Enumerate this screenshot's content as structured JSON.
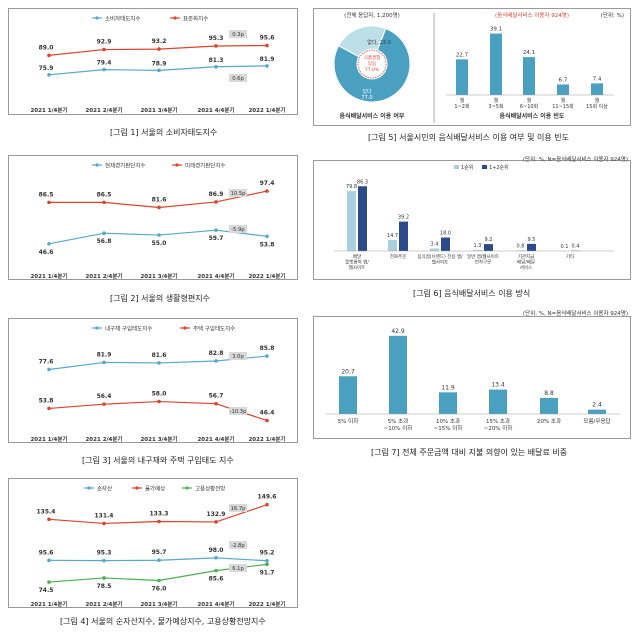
{
  "colors": {
    "blue": "#57a8c9",
    "red": "#d9452e",
    "green": "#4caf50",
    "bar": "#4aa0c0",
    "navy": "#2b4a8a",
    "lightbar": "#a9cfe0",
    "badge": "#d9d9d9"
  },
  "chart_data": [
    {
      "type": "line",
      "caption": "[그림 1] 서울의 소비자태도지수",
      "legend": [
        "소비자태도지수",
        "표준화지수"
      ],
      "categories": [
        "2021 1/4분기",
        "2021 2/4분기",
        "2021 3/4분기",
        "2021 4/4분기",
        "2022 1/4분기"
      ],
      "series": [
        {
          "name": "소비자태도지수",
          "values": [
            75.9,
            79.4,
            78.9,
            81.3,
            81.9
          ]
        },
        {
          "name": "표준화지수",
          "values": [
            89.0,
            92.9,
            93.2,
            95.3,
            95.6
          ]
        }
      ],
      "badges": [
        "0.3p",
        "0.6p"
      ],
      "ylim": [
        65,
        100
      ]
    },
    {
      "type": "line",
      "caption": "[그림 2] 서울의 생활형편지수",
      "legend": [
        "현재경기판단지수",
        "미래경기판단지수"
      ],
      "categories": [
        "2021 1/4분기",
        "2021 2/4분기",
        "2021 3/4분기",
        "2021 4/4분기",
        "2022 1/4분기"
      ],
      "series": [
        {
          "name": "현재경기판단지수",
          "values": [
            46.6,
            56.8,
            55.0,
            59.7,
            53.8
          ]
        },
        {
          "name": "미래경기판단지수",
          "values": [
            86.5,
            86.5,
            81.6,
            86.9,
            97.4
          ]
        }
      ],
      "badges": [
        "10.5p",
        "-5.9p"
      ],
      "ylim": [
        30,
        110
      ]
    },
    {
      "type": "line",
      "caption": "[그림 3] 서울의 내구재와 주택 구입태도 지수",
      "legend": [
        "내구재 구입태도지수",
        "주택 구입태도지수"
      ],
      "categories": [
        "2021 1/4분기",
        "2021 2/4분기",
        "2021 3/4분기",
        "2021 4/4분기",
        "2022 1/4분기"
      ],
      "series": [
        {
          "name": "내구재 구입태도지수",
          "values": [
            77.6,
            81.9,
            81.6,
            82.8,
            85.8
          ]
        },
        {
          "name": "주택 구입태도지수",
          "values": [
            53.8,
            56.4,
            58.0,
            56.7,
            46.4
          ]
        }
      ],
      "badges": [
        "3.0p",
        "-10.3p"
      ],
      "ylim": [
        40,
        95
      ]
    },
    {
      "type": "line",
      "caption": "[그림 4] 서울의 순자산지수, 물가예상지수, 고용상황전망지수",
      "legend": [
        "순자산",
        "물가예상",
        "고용상황전망"
      ],
      "categories": [
        "2021 1/4분기",
        "2021 2/4분기",
        "2021 3/4분기",
        "2021 4/4분기",
        "2022 1/4분기"
      ],
      "series": [
        {
          "name": "순자산",
          "values": [
            95.6,
            95.3,
            95.7,
            98.0,
            95.2
          ]
        },
        {
          "name": "물가예상",
          "values": [
            135.4,
            131.4,
            133.3,
            132.9,
            149.6
          ]
        },
        {
          "name": "고용상황전망",
          "values": [
            74.5,
            78.5,
            76.0,
            85.6,
            91.7
          ]
        }
      ],
      "badges": [
        "16.7p",
        "-2.8p",
        "6.1p"
      ],
      "ylim": [
        60,
        160
      ]
    },
    {
      "type": "pie+bar",
      "caption": "[그림 5] 서울시민의 음식배달서비스 이용 여부 및 이용 빈도",
      "unit": "(단위: %)",
      "pie": {
        "note": "(전체 응답자, 1,200명)",
        "slices": [
          {
            "label": "없다, 23.0",
            "value": 23.0
          },
          {
            "label": "있다, 77.0",
            "value": 77.0
          }
        ],
        "center": [
          "식품경험",
          "있음",
          "77.0%"
        ],
        "xlabel": "음식배달서비스 이용 여부"
      },
      "bars": {
        "note": "(음식배달서비스 이용자 924명)",
        "categories": [
          "월 1~2회",
          "월 3~5회",
          "월 6~10회",
          "월 11~15회",
          "월 15회 이상"
        ],
        "values": [
          22.7,
          39.1,
          24.1,
          6.7,
          7.4
        ],
        "xlabel": "음식배달서비스 이용 빈도"
      }
    },
    {
      "type": "bar",
      "caption": "[그림 6] 음식배달서비스 이용 방식",
      "unit": "(단위: %, N=음식배달서비스 이용자 924명)",
      "legend": [
        "1순위",
        "1+2순위"
      ],
      "categories": [
        "배달 플랫폼의 앱/웹사이트",
        "전화주문",
        "음식점(브랜드) 전용 앱/웹사이트",
        "일반 앱/웹사이트 전자구문",
        "기관지급 배달/배달 서비스",
        "기타"
      ],
      "series": [
        {
          "name": "1순위",
          "values": [
            79.8,
            14.7,
            3.4,
            1.3,
            0.8,
            0.1
          ]
        },
        {
          "name": "1+2순위",
          "values": [
            86.3,
            39.2,
            18.0,
            9.2,
            9.5,
            0.4
          ]
        }
      ],
      "ylim": [
        0,
        100
      ]
    },
    {
      "type": "bar",
      "caption": "[그림 7] 전체 주문금액 대비 지불 의향이 있는 배달료 비중",
      "unit": "(단위: %, N=음식배달서비스 이용자 924명)",
      "categories": [
        "5% 이하",
        "5% 초과 ~10% 이하",
        "10% 초과 ~15% 이하",
        "15% 초과 ~20% 이하",
        "20% 초과",
        "모름/무응답"
      ],
      "values": [
        20.7,
        42.9,
        11.9,
        13.4,
        8.8,
        2.4
      ],
      "ylim": [
        0,
        45
      ]
    }
  ]
}
